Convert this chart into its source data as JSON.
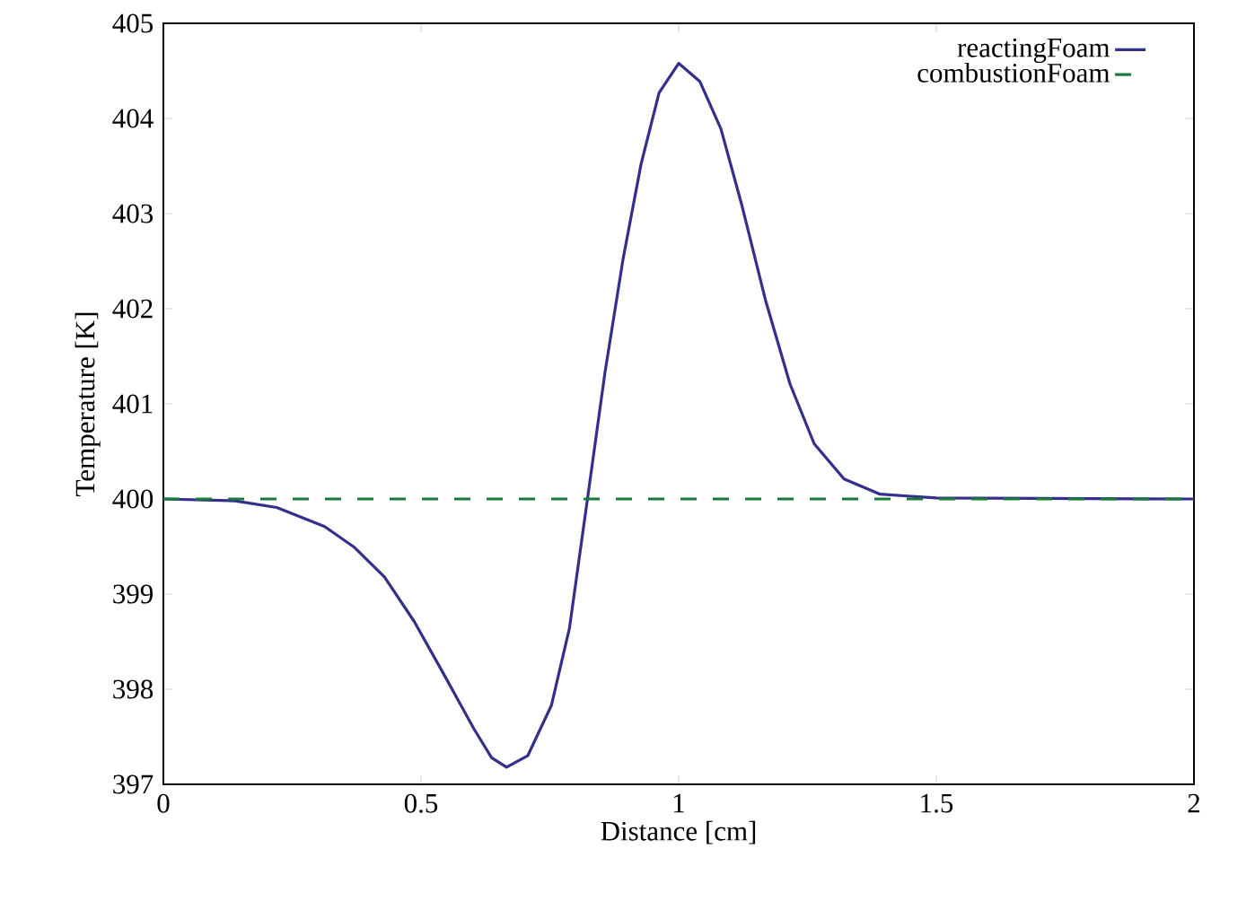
{
  "chart_data": {
    "type": "line",
    "xlabel": "Distance [cm]",
    "ylabel": "Temperature [K]",
    "xlim": [
      0,
      2
    ],
    "ylim": [
      397,
      405
    ],
    "xticks": [
      0,
      0.5,
      1,
      1.5,
      2
    ],
    "yticks": [
      397,
      398,
      399,
      400,
      401,
      402,
      403,
      404,
      405
    ],
    "grid": false,
    "legend": "top right",
    "marker": "none",
    "series": [
      {
        "name": "reactingFoam",
        "color": "#332f8a",
        "line_style": "solid",
        "x": [
          0,
          0.139,
          0.22,
          0.313,
          0.371,
          0.429,
          0.487,
          0.545,
          0.603,
          0.637,
          0.666,
          0.707,
          0.753,
          0.788,
          0.823,
          0.857,
          0.892,
          0.927,
          0.962,
          1.0,
          1.041,
          1.082,
          1.123,
          1.169,
          1.216,
          1.263,
          1.321,
          1.391,
          1.5,
          2
        ],
        "values": [
          400,
          399.98,
          399.91,
          399.71,
          399.49,
          399.18,
          398.71,
          398.15,
          397.58,
          397.28,
          397.18,
          397.3,
          397.83,
          398.64,
          400,
          401.33,
          402.52,
          403.52,
          404.27,
          404.58,
          404.39,
          403.89,
          403.08,
          402.08,
          401.21,
          400.58,
          400.21,
          400.05,
          400.01,
          400
        ]
      },
      {
        "name": "combustionFoam",
        "color": "#1a7a3a",
        "line_style": "dashed",
        "x": [
          0,
          2
        ],
        "values": [
          400,
          400
        ]
      }
    ]
  }
}
